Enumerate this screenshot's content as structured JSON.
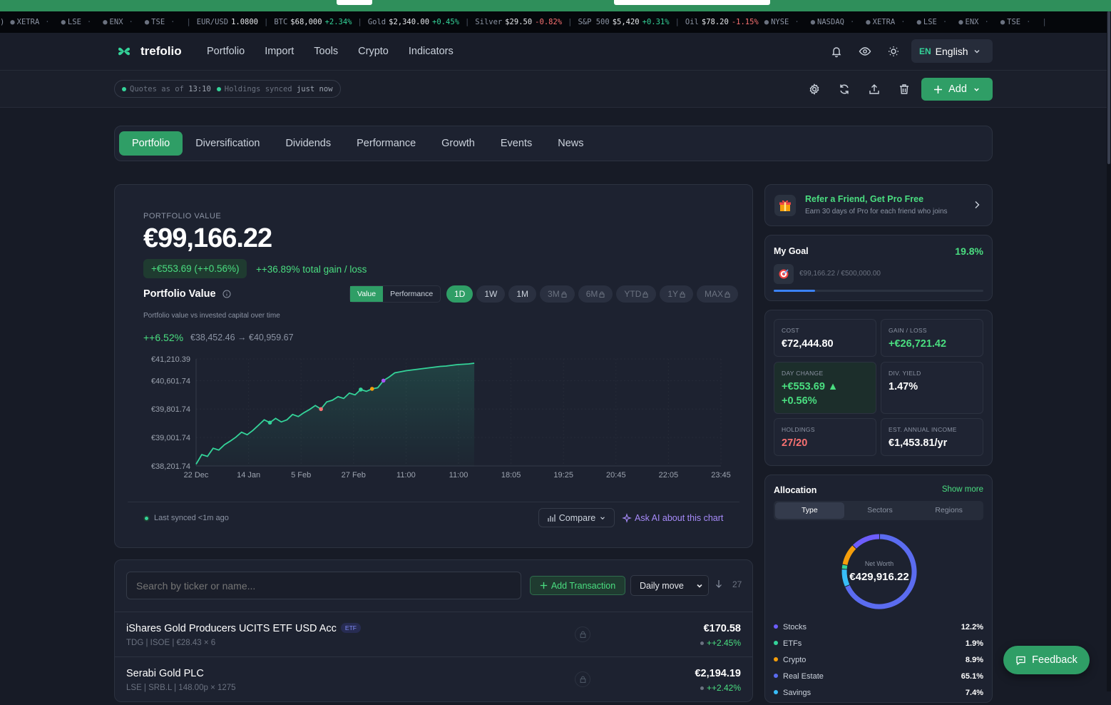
{
  "ticker": [
    {
      "kind": "ex",
      "label": "XETRA"
    },
    {
      "kind": "ex",
      "label": "LSE"
    },
    {
      "kind": "ex",
      "label": "ENX"
    },
    {
      "kind": "ex",
      "label": "TSE"
    },
    {
      "kind": "q",
      "label": "EUR/USD",
      "value": "1.0800",
      "change": ""
    },
    {
      "kind": "q",
      "label": "BTC",
      "value": "$68,000",
      "change": "+2.34%",
      "dir": "up"
    },
    {
      "kind": "q",
      "label": "Gold",
      "value": "$2,340.00",
      "change": "+0.45%",
      "dir": "up"
    },
    {
      "kind": "q",
      "label": "Silver",
      "value": "$29.50",
      "change": "-0.82%",
      "dir": "dn"
    },
    {
      "kind": "q",
      "label": "S&P 500",
      "value": "$5,420",
      "change": "+0.31%",
      "dir": "up"
    },
    {
      "kind": "q",
      "label": "Oil",
      "value": "$78.20",
      "change": "-1.15%",
      "dir": "dn"
    },
    {
      "kind": "ex",
      "label": "NYSE"
    },
    {
      "kind": "ex",
      "label": "NASDAQ"
    },
    {
      "kind": "ex",
      "label": "XETRA"
    },
    {
      "kind": "ex",
      "label": "LSE"
    },
    {
      "kind": "ex",
      "label": "ENX"
    },
    {
      "kind": "ex",
      "label": "TSE"
    }
  ],
  "nav": {
    "brand": "trefolio",
    "links": [
      "Portfolio",
      "Import",
      "Tools",
      "Crypto",
      "Indicators"
    ],
    "lang_code": "EN",
    "lang_label": "English"
  },
  "subbar": {
    "quotes_label": "Quotes as of",
    "quotes_time": "13:10",
    "holdings_label": "Holdings synced",
    "holdings_time": "just now",
    "add_label": "Add"
  },
  "tabs": [
    "Portfolio",
    "Diversification",
    "Dividends",
    "Performance",
    "Growth",
    "Events",
    "News"
  ],
  "portfolio": {
    "label": "PORTFOLIO VALUE",
    "value": "€99,166.22",
    "day_change": "+€553.69 (++0.56%)",
    "total_gain": "++36.89% total gain / loss",
    "chart_title": "Portfolio Value",
    "mode_value": "Value",
    "mode_performance": "Performance",
    "periods": [
      {
        "label": "1D",
        "state": "on"
      },
      {
        "label": "1W",
        "state": "normal"
      },
      {
        "label": "1M",
        "state": "normal"
      },
      {
        "label": "3M",
        "state": "lock"
      },
      {
        "label": "6M",
        "state": "lock"
      },
      {
        "label": "YTD",
        "state": "lock"
      },
      {
        "label": "1Y",
        "state": "lock"
      },
      {
        "label": "MAX",
        "state": "lock"
      }
    ],
    "chart_subtitle": "Portfolio value vs invested capital over time",
    "perf_pct": "++6.52%",
    "perf_range": "€38,452.46 → €40,959.67",
    "last_synced": "Last synced <1m ago",
    "compare": "Compare",
    "ask_ai": "Ask AI about this chart"
  },
  "chart_data": {
    "type": "line",
    "y_ticks": [
      "€41,210.39",
      "€40,601.74",
      "€39,801.74",
      "€39,001.74",
      "€38,201.74"
    ],
    "x_ticks": [
      "22 Dec",
      "14 Jan",
      "5 Feb",
      "27 Feb",
      "11:00",
      "11:00",
      "18:05",
      "19:25",
      "20:45",
      "22:05",
      "23:45"
    ],
    "ylim": [
      38201.74,
      41210.39
    ],
    "grid": true,
    "series": [
      {
        "values": [
          38252,
          38520,
          38470,
          38700,
          38650,
          38800,
          38900,
          39010,
          39150,
          39080,
          39200,
          39350,
          39500,
          39420,
          39540,
          39440,
          39500,
          39650,
          39590,
          39700,
          39790,
          39900,
          39800,
          40000,
          40050,
          40150,
          40100,
          40250,
          40200,
          40350,
          40300,
          40370,
          40400,
          40600,
          40700,
          40820,
          40850,
          40880,
          40900,
          40920,
          40940,
          40960,
          40980,
          41000,
          41010,
          41030,
          41050,
          41060,
          41070,
          41090
        ]
      }
    ],
    "markers": [
      {
        "index": 13,
        "color": "#34d399"
      },
      {
        "index": 22,
        "color": "#f87171"
      },
      {
        "index": 29,
        "color": "#34d399"
      },
      {
        "index": 31,
        "color": "#f59e0b"
      },
      {
        "index": 33,
        "color": "#a855f7"
      }
    ]
  },
  "holdings": {
    "search_placeholder": "Search by ticker or name...",
    "add_transaction": "Add Transaction",
    "sort_select": "Daily move",
    "count": "27",
    "rows": [
      {
        "name": "iShares Gold Producers UCITS ETF USD Acc",
        "badge": "ETF",
        "sub": "TDG | ISOE | €28.43 × 6",
        "amount": "€170.58",
        "change": "++2.45%"
      },
      {
        "name": "Serabi Gold PLC",
        "badge": "",
        "sub": "LSE | SRB.L | 148.00p × 1275",
        "amount": "€2,194.19",
        "change": "++2.42%"
      }
    ]
  },
  "refer": {
    "title": "Refer a Friend, Get Pro Free",
    "subtitle": "Earn 30 days of Pro for each friend who joins"
  },
  "goal": {
    "title": "My Goal",
    "pct": "19.8%",
    "progress": 0.198,
    "text": "€99,166.22 / €500,000.00"
  },
  "stats": {
    "cost_label": "COST",
    "cost": "€72,444.80",
    "gain_label": "GAIN / LOSS",
    "gain": "+€26,721.42",
    "day_label": "DAY CHANGE",
    "day": "+€553.69 ▲",
    "day_pct": "+0.56%",
    "yield_label": "DIV. YIELD",
    "yield": "1.47%",
    "holdings_label": "HOLDINGS",
    "holdings": "27/20",
    "income_label": "EST. ANNUAL INCOME",
    "income": "€1,453.81/yr"
  },
  "allocation": {
    "title": "Allocation",
    "show_more": "Show more",
    "tabs": [
      "Type",
      "Sectors",
      "Regions"
    ],
    "center_label": "Net Worth",
    "center_value": "€429,916.22",
    "items": [
      {
        "label": "Stocks",
        "pct": "12.2%",
        "value": 12.2,
        "color": "#6d5dfc"
      },
      {
        "label": "ETFs",
        "pct": "1.9%",
        "value": 1.9,
        "color": "#34d399"
      },
      {
        "label": "Crypto",
        "pct": "8.9%",
        "value": 8.9,
        "color": "#f59e0b"
      },
      {
        "label": "Real Estate",
        "pct": "65.1%",
        "value": 65.1,
        "color": "#5b6cf0"
      },
      {
        "label": "Savings",
        "pct": "7.4%",
        "value": 7.4,
        "color": "#38bdf8"
      }
    ]
  },
  "feedback": "Feedback"
}
